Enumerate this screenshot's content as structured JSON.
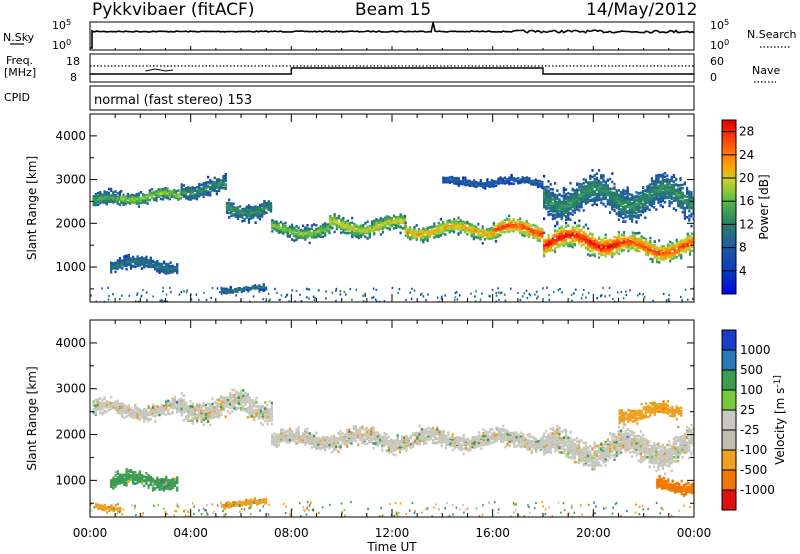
{
  "header": {
    "station": "Pykkvibaer (fitACF)",
    "beam": "Beam 15",
    "date": "14/May/2012"
  },
  "status_panel": {
    "nsky_label": "N.Sky",
    "nsearch_label": "N.Search",
    "freq_label_line1": "Freq.",
    "freq_label_line2": "[MHz]",
    "nave_label": "Nave",
    "cpid_label": "CPID",
    "cpid_text": "normal (fast stereo) 153",
    "left_ticks_top": [
      "10^5",
      "10^0"
    ],
    "right_ticks_top": [
      "10^5",
      "10^0"
    ],
    "left_ticks_freq": [
      "18",
      "8"
    ],
    "right_ticks_nave": [
      "60",
      "0"
    ]
  },
  "chart_data": [
    {
      "type": "heatmap",
      "title": "",
      "xlabel": "Time UT",
      "ylabel": "Slant Range [km]",
      "colorbar_label": "Power [dB]",
      "xlim": [
        0,
        24
      ],
      "ylim": [
        200,
        4500
      ],
      "x_ticks": [
        "00:00",
        "04:00",
        "08:00",
        "12:00",
        "16:00",
        "20:00",
        "00:00"
      ],
      "y_ticks": [
        1000,
        2000,
        3000,
        4000
      ],
      "colorbar_ticks": [
        4,
        8,
        12,
        16,
        20,
        24,
        28
      ],
      "colorbar_range": [
        0,
        30
      ],
      "bands": [
        {
          "t_start": 0.1,
          "t_end": 1.2,
          "range": 2500,
          "width": 260,
          "power": 14
        },
        {
          "t_start": 1.2,
          "t_end": 3.6,
          "range": 2620,
          "width": 240,
          "power": 16
        },
        {
          "t_start": 3.6,
          "t_end": 5.4,
          "range": 2800,
          "width": 300,
          "power": 12
        },
        {
          "t_start": 5.4,
          "t_end": 7.2,
          "range": 2350,
          "width": 320,
          "power": 12
        },
        {
          "t_start": 7.2,
          "t_end": 9.5,
          "range": 1850,
          "width": 260,
          "power": 16
        },
        {
          "t_start": 9.5,
          "t_end": 12.5,
          "range": 1950,
          "width": 300,
          "power": 18
        },
        {
          "t_start": 12.5,
          "t_end": 16,
          "range": 1850,
          "width": 280,
          "power": 20
        },
        {
          "t_start": 16,
          "t_end": 18,
          "range": 1850,
          "width": 320,
          "power": 24
        },
        {
          "t_start": 18,
          "t_end": 21,
          "range": 1600,
          "width": 420,
          "power": 26
        },
        {
          "t_start": 21,
          "t_end": 24,
          "range": 1450,
          "width": 380,
          "power": 24
        },
        {
          "t_start": 0.8,
          "t_end": 3.5,
          "range": 1050,
          "width": 260,
          "power": 10
        },
        {
          "t_start": 5.2,
          "t_end": 7,
          "range": 500,
          "width": 120,
          "power": 10
        },
        {
          "t_start": 18,
          "t_end": 24,
          "range": 2600,
          "width": 600,
          "power": 12
        },
        {
          "t_start": 14,
          "t_end": 18,
          "range": 2950,
          "width": 150,
          "power": 8
        }
      ]
    },
    {
      "type": "heatmap",
      "title": "",
      "xlabel": "Time UT",
      "ylabel": "Slant Range [km]",
      "colorbar_label": "Velocity [m s^-1]",
      "xlim": [
        0,
        24
      ],
      "ylim": [
        200,
        4500
      ],
      "x_ticks": [
        "00:00",
        "04:00",
        "08:00",
        "12:00",
        "16:00",
        "20:00",
        "00:00"
      ],
      "y_ticks": [
        1000,
        2000,
        3000,
        4000
      ],
      "colorbar_ticks": [
        "1000",
        "500",
        "100",
        "25",
        "-25",
        "-100",
        "-500",
        "-1000"
      ],
      "bands": [
        {
          "t_start": 0.1,
          "t_end": 3.6,
          "range": 2550,
          "width": 280,
          "velocity": 0
        },
        {
          "t_start": 3.6,
          "t_end": 7.2,
          "range": 2600,
          "width": 400,
          "velocity": 0
        },
        {
          "t_start": 7.2,
          "t_end": 18,
          "range": 1900,
          "width": 300,
          "velocity": 0
        },
        {
          "t_start": 18,
          "t_end": 24,
          "range": 1700,
          "width": 500,
          "velocity": 0
        },
        {
          "t_start": 0.8,
          "t_end": 3.5,
          "range": 1000,
          "width": 260,
          "velocity": 150
        },
        {
          "t_start": 5.2,
          "t_end": 7,
          "range": 500,
          "width": 120,
          "velocity": -200
        },
        {
          "t_start": 21,
          "t_end": 23.5,
          "range": 2500,
          "width": 250,
          "velocity": -200
        },
        {
          "t_start": 22.5,
          "t_end": 24,
          "range": 900,
          "width": 250,
          "velocity": -400
        },
        {
          "t_start": 0.2,
          "t_end": 1.2,
          "range": 400,
          "width": 120,
          "velocity": -200
        }
      ]
    }
  ]
}
